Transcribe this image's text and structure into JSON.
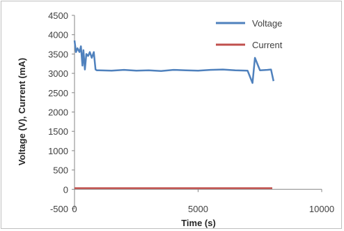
{
  "chart_data": {
    "type": "line",
    "title": "",
    "xlabel": "Time (s)",
    "ylabel": "Voltage (V), Current (mA)",
    "xlim": [
      0,
      10000
    ],
    "ylim": [
      -500,
      4500
    ],
    "x_ticks": [
      "0",
      "5000",
      "10000"
    ],
    "y_ticks": [
      "-500",
      "0",
      "500",
      "1000",
      "1500",
      "2000",
      "2500",
      "3000",
      "3500",
      "4000",
      "4500"
    ],
    "grid": false,
    "legend_position": "top-right",
    "series": [
      {
        "name": "Voltage",
        "color": "#4f81bd",
        "x": [
          0,
          60,
          120,
          200,
          260,
          320,
          360,
          420,
          480,
          550,
          620,
          700,
          780,
          850,
          900,
          1000,
          1500,
          2000,
          2500,
          3000,
          3500,
          4000,
          4500,
          5000,
          5500,
          6000,
          6500,
          7000,
          7200,
          7300,
          7500,
          7800,
          7950,
          8050
        ],
        "y": [
          3850,
          3550,
          3650,
          3550,
          3700,
          3200,
          3600,
          3100,
          3500,
          3450,
          3550,
          3400,
          3550,
          3100,
          3080,
          3080,
          3070,
          3090,
          3070,
          3080,
          3060,
          3090,
          3080,
          3070,
          3090,
          3100,
          3080,
          3070,
          2750,
          3400,
          3080,
          3090,
          3100,
          2800
        ]
      },
      {
        "name": "Current",
        "color": "#c0504d",
        "x": [
          0,
          8000
        ],
        "y": [
          30,
          30
        ]
      }
    ]
  }
}
